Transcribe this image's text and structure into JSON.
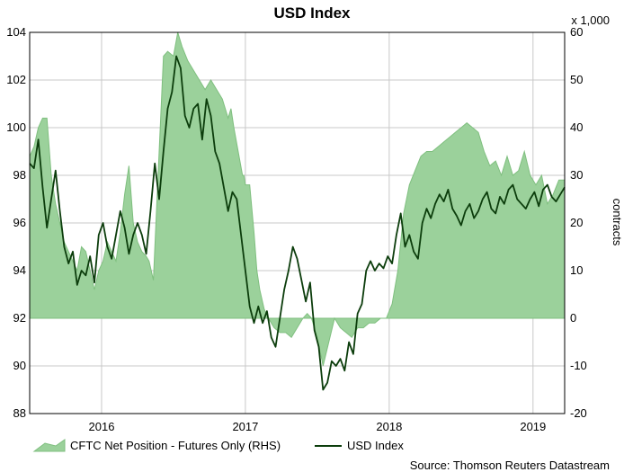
{
  "chart_data": {
    "type": "line",
    "title": "USD Index",
    "right_axis_unit": "x 1,000",
    "ylabel_right": "contracts",
    "source": "Source: Thomson Reuters Datastream",
    "x_ticks": [
      "2016",
      "2017",
      "2018",
      "2019"
    ],
    "x_tick_pos": [
      2016.0,
      2017.0,
      2018.0,
      2019.0
    ],
    "xlim": [
      2015.5,
      2019.22
    ],
    "ylim_left": [
      88,
      104
    ],
    "ylim_right": [
      -20,
      60
    ],
    "y_ticks_left": [
      "88",
      "90",
      "92",
      "94",
      "96",
      "98",
      "100",
      "102",
      "104"
    ],
    "y_ticks_right": [
      "-20",
      "-10",
      "0",
      "10",
      "20",
      "30",
      "40",
      "50",
      "60"
    ],
    "grid": true,
    "legend_position": "bottom",
    "colors": {
      "area_fill": "#9bd19b",
      "area_edge": "#7fbf7f",
      "line": "#0c3d0c",
      "grid": "#c8c8c8"
    },
    "series": [
      {
        "name": "CFTC Net Position - Futures Only (RHS)",
        "type": "area",
        "axis": "right",
        "x": [
          2015.5,
          2015.53,
          2015.56,
          2015.59,
          2015.62,
          2015.65,
          2015.68,
          2015.71,
          2015.74,
          2015.77,
          2015.8,
          2015.83,
          2015.86,
          2015.89,
          2015.92,
          2015.95,
          2015.98,
          2016.01,
          2016.04,
          2016.07,
          2016.1,
          2016.13,
          2016.16,
          2016.19,
          2016.22,
          2016.25,
          2016.28,
          2016.31,
          2016.33,
          2016.36,
          2016.4,
          2016.43,
          2016.46,
          2016.5,
          2016.53,
          2016.56,
          2016.6,
          2016.64,
          2016.68,
          2016.72,
          2016.76,
          2016.8,
          2016.84,
          2016.88,
          2016.9,
          2016.92,
          2016.95,
          2016.98,
          2016.99,
          2017.0,
          2017.03,
          2017.06,
          2017.08,
          2017.1,
          2017.13,
          2017.16,
          2017.2,
          2017.24,
          2017.28,
          2017.32,
          2017.36,
          2017.4,
          2017.43,
          2017.46,
          2017.5,
          2017.54,
          2017.58,
          2017.62,
          2017.66,
          2017.7,
          2017.74,
          2017.78,
          2017.82,
          2017.86,
          2017.9,
          2017.94,
          2017.98,
          2018.02,
          2018.06,
          2018.1,
          2018.14,
          2018.18,
          2018.22,
          2018.26,
          2018.3,
          2018.34,
          2018.38,
          2018.42,
          2018.46,
          2018.5,
          2018.54,
          2018.58,
          2018.62,
          2018.66,
          2018.7,
          2018.74,
          2018.78,
          2018.82,
          2018.86,
          2018.9,
          2018.94,
          2018.98,
          2019.02,
          2019.06,
          2019.1,
          2019.14,
          2019.18,
          2019.22
        ],
        "values": [
          34,
          36,
          40,
          42,
          42,
          30,
          24,
          20,
          16,
          14,
          12,
          10,
          15,
          14,
          10,
          6,
          10,
          12,
          16,
          14,
          12,
          18,
          26,
          32,
          20,
          16,
          14,
          13,
          12,
          8,
          35,
          55,
          56,
          55,
          60,
          57,
          54,
          52,
          50,
          48,
          50,
          48,
          46,
          42,
          44,
          40,
          35,
          30,
          30,
          28,
          28,
          18,
          10,
          6,
          2,
          0,
          -2,
          -3,
          -3,
          -4,
          -2,
          0,
          1,
          0,
          -4,
          -10,
          -5,
          0,
          -2,
          -3,
          -4,
          -2,
          -2,
          -1,
          -1,
          0,
          0,
          3,
          10,
          22,
          28,
          31,
          34,
          35,
          35,
          36,
          37,
          38,
          39,
          40,
          41,
          40,
          39,
          35,
          32,
          33,
          30,
          34,
          30,
          31,
          35,
          30,
          28,
          30,
          24,
          26,
          29,
          29
        ]
      },
      {
        "name": "USD Index",
        "type": "line",
        "axis": "left",
        "x": [
          2015.5,
          2015.53,
          2015.56,
          2015.59,
          2015.62,
          2015.65,
          2015.68,
          2015.71,
          2015.74,
          2015.77,
          2015.8,
          2015.83,
          2015.86,
          2015.89,
          2015.92,
          2015.95,
          2015.98,
          2016.01,
          2016.04,
          2016.07,
          2016.1,
          2016.13,
          2016.16,
          2016.19,
          2016.22,
          2016.25,
          2016.28,
          2016.31,
          2016.34,
          2016.37,
          2016.4,
          2016.43,
          2016.46,
          2016.49,
          2016.52,
          2016.55,
          2016.58,
          2016.61,
          2016.64,
          2016.67,
          2016.7,
          2016.73,
          2016.76,
          2016.79,
          2016.82,
          2016.85,
          2016.88,
          2016.91,
          2016.94,
          2016.97,
          2017.0,
          2017.03,
          2017.06,
          2017.09,
          2017.12,
          2017.15,
          2017.18,
          2017.21,
          2017.24,
          2017.27,
          2017.3,
          2017.33,
          2017.36,
          2017.39,
          2017.42,
          2017.45,
          2017.48,
          2017.51,
          2017.54,
          2017.57,
          2017.6,
          2017.63,
          2017.66,
          2017.69,
          2017.72,
          2017.75,
          2017.78,
          2017.81,
          2017.84,
          2017.87,
          2017.9,
          2017.93,
          2017.96,
          2017.99,
          2018.02,
          2018.05,
          2018.08,
          2018.11,
          2018.14,
          2018.17,
          2018.2,
          2018.23,
          2018.26,
          2018.29,
          2018.32,
          2018.35,
          2018.38,
          2018.41,
          2018.44,
          2018.47,
          2018.5,
          2018.53,
          2018.56,
          2018.59,
          2018.62,
          2018.65,
          2018.68,
          2018.71,
          2018.74,
          2018.77,
          2018.8,
          2018.83,
          2018.86,
          2018.89,
          2018.92,
          2018.95,
          2018.98,
          2019.01,
          2019.04,
          2019.07,
          2019.1,
          2019.13,
          2019.16,
          2019.19,
          2019.22
        ],
        "values": [
          98.5,
          98.3,
          99.5,
          97.5,
          95.8,
          97.0,
          98.2,
          96.5,
          95.0,
          94.3,
          94.8,
          93.4,
          94.0,
          93.8,
          94.6,
          93.5,
          95.5,
          96.0,
          95.0,
          94.5,
          95.5,
          96.5,
          95.8,
          94.7,
          95.5,
          96.0,
          95.5,
          94.7,
          96.5,
          98.5,
          97.0,
          99.0,
          100.8,
          101.5,
          103.0,
          102.5,
          100.5,
          100.0,
          100.8,
          101.0,
          99.5,
          101.2,
          100.5,
          99.0,
          98.5,
          97.5,
          96.5,
          97.3,
          97.0,
          95.5,
          94.0,
          92.5,
          91.8,
          92.5,
          91.8,
          92.3,
          91.2,
          90.8,
          92.0,
          93.2,
          94.0,
          95.0,
          94.5,
          93.6,
          92.7,
          93.5,
          91.5,
          90.8,
          89.0,
          89.3,
          90.2,
          90.0,
          90.3,
          89.8,
          91.0,
          90.5,
          92.2,
          92.6,
          94.0,
          94.4,
          94.0,
          94.3,
          94.1,
          94.6,
          94.3,
          95.5,
          96.4,
          95.0,
          95.5,
          94.8,
          94.5,
          96.0,
          96.6,
          96.2,
          96.8,
          97.2,
          96.9,
          97.4,
          96.6,
          96.3,
          95.9,
          96.5,
          96.8,
          96.2,
          96.5,
          97.0,
          97.3,
          96.6,
          96.4,
          97.1,
          96.8,
          97.4,
          97.6,
          97.0,
          96.8,
          96.6,
          97.0,
          97.3,
          96.7,
          97.4,
          97.6,
          97.1,
          96.9,
          97.2,
          97.5
        ]
      }
    ]
  }
}
